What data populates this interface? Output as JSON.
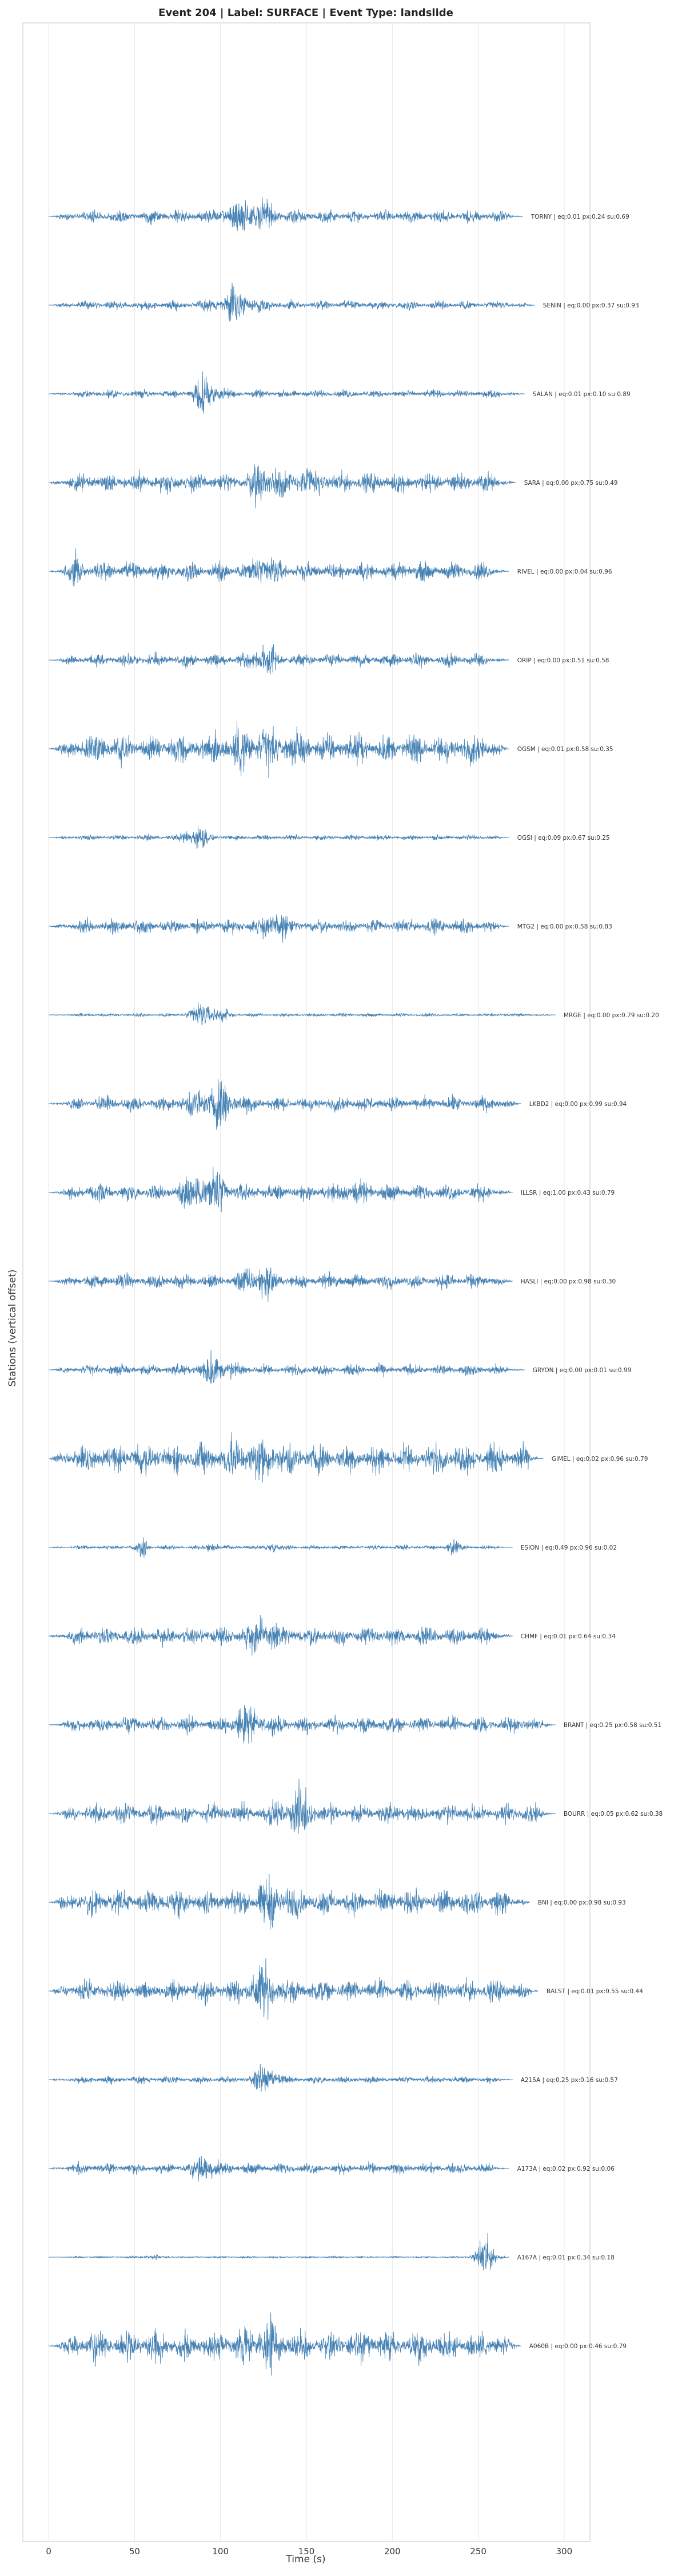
{
  "chart_data": {
    "type": "line",
    "title": "Event 204 | Label: SURFACE | Event Type: landslide",
    "xlabel": "Time (s)",
    "ylabel": "Stations (vertical offset)",
    "xlim": [
      -15,
      315
    ],
    "xticks": [
      0,
      50,
      100,
      150,
      200,
      250,
      300
    ],
    "grid": true,
    "line_color": "#4682b4",
    "traces": [
      {
        "label": "TORNY | eq:0.01 px:0.24 su:0.69",
        "end": 276,
        "base": 0.35,
        "seed": 11,
        "bursts": [
          {
            "t": 122,
            "amp": 1.0,
            "w": 10
          },
          {
            "t": 105,
            "amp": 0.5,
            "w": 8
          }
        ]
      },
      {
        "label": "SENIN | eq:0.00 px:0.37 su:0.93",
        "end": 283,
        "base": 0.25,
        "seed": 12,
        "bursts": [
          {
            "t": 110,
            "amp": 0.8,
            "w": 12
          }
        ]
      },
      {
        "label": "SALAN | eq:0.01 px:0.10 su:0.89",
        "end": 277,
        "base": 0.22,
        "seed": 13,
        "bursts": [
          {
            "t": 92,
            "amp": 1.0,
            "w": 7
          }
        ]
      },
      {
        "label": "SARA | eq:0.00 px:0.75 su:0.49",
        "end": 272,
        "base": 0.55,
        "seed": 14,
        "bursts": [
          {
            "t": 127,
            "amp": 1.1,
            "w": 8
          },
          {
            "t": 150,
            "amp": 0.5,
            "w": 10
          }
        ]
      },
      {
        "label": "RIVEL | eq:0.00 px:0.04 su:0.96",
        "end": 268,
        "base": 0.5,
        "seed": 15,
        "bursts": [
          {
            "t": 125,
            "amp": 1.1,
            "w": 6
          },
          {
            "t": 15,
            "amp": 0.5,
            "w": 5
          }
        ]
      },
      {
        "label": "ORIP | eq:0.00 px:0.51 su:0.58",
        "end": 268,
        "base": 0.35,
        "seed": 16,
        "bursts": [
          {
            "t": 125,
            "amp": 1.0,
            "w": 6
          }
        ]
      },
      {
        "label": "OGSM | eq:0.01 px:0.58 su:0.35",
        "end": 268,
        "base": 0.8,
        "seed": 17,
        "bursts": [
          {
            "t": 118,
            "amp": 0.6,
            "w": 20
          }
        ]
      },
      {
        "label": "OGSI | eq:0.09 px:0.67 su:0.25",
        "end": 268,
        "base": 0.15,
        "seed": 18,
        "bursts": [
          {
            "t": 85,
            "amp": 0.9,
            "w": 6
          }
        ]
      },
      {
        "label": "MTG2 | eq:0.00 px:0.58 su:0.83",
        "end": 268,
        "base": 0.4,
        "seed": 19,
        "bursts": [
          {
            "t": 132,
            "amp": 1.0,
            "w": 6
          }
        ]
      },
      {
        "label": "MRGE | eq:0.00 px:0.79 su:0.20",
        "end": 295,
        "base": 0.1,
        "seed": 20,
        "bursts": [
          {
            "t": 92,
            "amp": 0.9,
            "w": 9
          }
        ]
      },
      {
        "label": "LKBD2 | eq:0.00 px:0.99 su:0.94",
        "end": 275,
        "base": 0.4,
        "seed": 21,
        "bursts": [
          {
            "t": 97,
            "amp": 1.0,
            "w": 14
          }
        ]
      },
      {
        "label": "ILLSR | eq:1.00 px:0.43 su:0.79",
        "end": 270,
        "base": 0.45,
        "seed": 22,
        "bursts": [
          {
            "t": 92,
            "amp": 1.3,
            "w": 12
          },
          {
            "t": 175,
            "amp": 0.5,
            "w": 7
          }
        ]
      },
      {
        "label": "HASLI | eq:0.00 px:0.98 su:0.30",
        "end": 270,
        "base": 0.4,
        "seed": 23,
        "bursts": [
          {
            "t": 122,
            "amp": 1.0,
            "w": 8
          }
        ]
      },
      {
        "label": "GRYON | eq:0.00 px:0.01 su:0.99",
        "end": 277,
        "base": 0.3,
        "seed": 24,
        "bursts": [
          {
            "t": 97,
            "amp": 1.0,
            "w": 8
          }
        ]
      },
      {
        "label": "GIMEL | eq:0.02 px:0.96 su:0.79",
        "end": 288,
        "base": 0.8,
        "seed": 25,
        "bursts": [
          {
            "t": 118,
            "amp": 0.6,
            "w": 20
          }
        ]
      },
      {
        "label": "ESION | eq:0.49 px:0.96 su:0.02",
        "end": 270,
        "base": 0.12,
        "seed": 26,
        "bursts": [
          {
            "t": 55,
            "amp": 0.6,
            "w": 3
          },
          {
            "t": 95,
            "amp": 0.5,
            "w": 3
          },
          {
            "t": 130,
            "amp": 0.5,
            "w": 3
          },
          {
            "t": 235,
            "amp": 0.7,
            "w": 3
          }
        ]
      },
      {
        "label": "CHMF | eq:0.01 px:0.64 su:0.34",
        "end": 270,
        "base": 0.5,
        "seed": 27,
        "bursts": [
          {
            "t": 125,
            "amp": 1.1,
            "w": 8
          }
        ]
      },
      {
        "label": "BRANT | eq:0.25 px:0.58 su:0.51",
        "end": 295,
        "base": 0.45,
        "seed": 28,
        "bursts": [
          {
            "t": 115,
            "amp": 0.8,
            "w": 10
          }
        ]
      },
      {
        "label": "BOURR | eq:0.05 px:0.62 su:0.38",
        "end": 295,
        "base": 0.55,
        "seed": 29,
        "bursts": [
          {
            "t": 145,
            "amp": 0.9,
            "w": 10
          }
        ]
      },
      {
        "label": "BNI | eq:0.00 px:0.98 su:0.93",
        "end": 280,
        "base": 0.7,
        "seed": 30,
        "bursts": [
          {
            "t": 130,
            "amp": 0.8,
            "w": 10
          }
        ]
      },
      {
        "label": "BALST | eq:0.01 px:0.55 su:0.44",
        "end": 285,
        "base": 0.6,
        "seed": 31,
        "bursts": [
          {
            "t": 125,
            "amp": 1.0,
            "w": 10
          }
        ]
      },
      {
        "label": "A215A | eq:0.25 px:0.16 su:0.57",
        "end": 270,
        "base": 0.2,
        "seed": 32,
        "bursts": [
          {
            "t": 127,
            "amp": 1.0,
            "w": 6
          }
        ]
      },
      {
        "label": "A173A | eq:0.02 px:0.92 su:0.06",
        "end": 268,
        "base": 0.3,
        "seed": 33,
        "bursts": [
          {
            "t": 92,
            "amp": 1.0,
            "w": 6
          }
        ]
      },
      {
        "label": "A167A | eq:0.01 px:0.34 su:0.18",
        "end": 268,
        "base": 0.05,
        "seed": 34,
        "bursts": [
          {
            "t": 255,
            "amp": 1.3,
            "w": 6
          },
          {
            "t": 60,
            "amp": 0.15,
            "w": 5
          }
        ]
      },
      {
        "label": "A060B | eq:0.00 px:0.46 su:0.79",
        "end": 275,
        "base": 0.8,
        "seed": 35,
        "bursts": [
          {
            "t": 125,
            "amp": 0.7,
            "w": 12
          }
        ]
      }
    ]
  }
}
